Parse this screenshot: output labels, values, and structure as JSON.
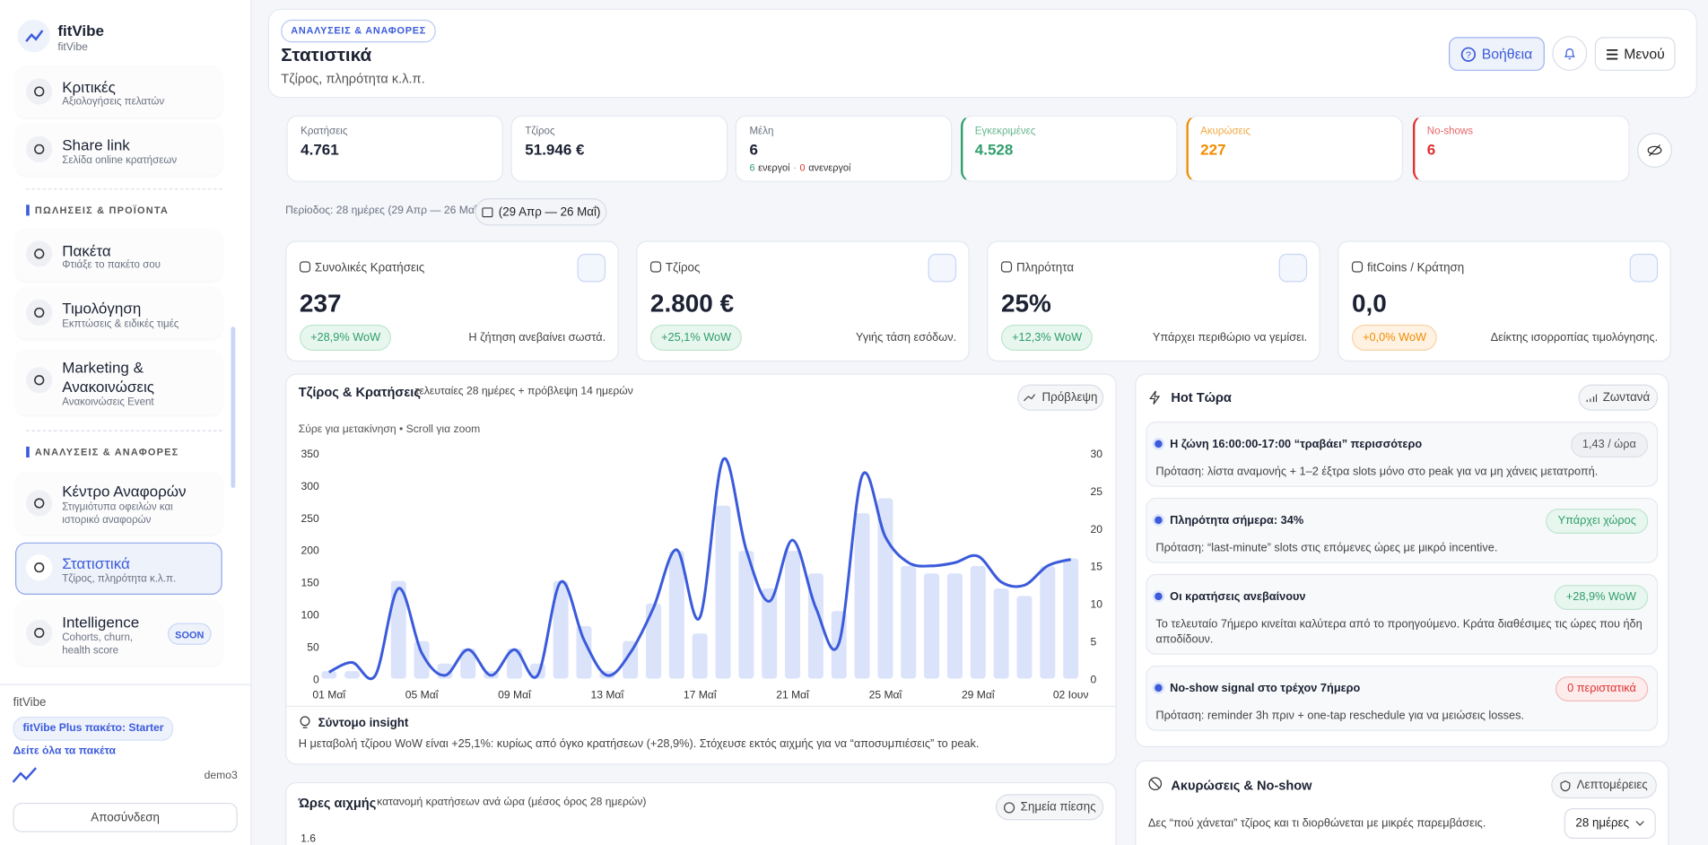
{
  "sidebar": {
    "brand": "fitVibe",
    "brand_sub": "fitVibe",
    "items": [
      {
        "title": "Κριτικές",
        "sub": "Αξιολογήσεις πελατών"
      },
      {
        "title": "Share link",
        "sub": "Σελίδα online κρατήσεων"
      },
      {
        "title": "Πακέτα",
        "sub": "Φτιάξε το πακέτο σου"
      },
      {
        "title": "Τιμολόγηση",
        "sub": "Εκπτώσεις & ειδικές τιμές"
      },
      {
        "title": "Marketing & Ανακοινώσεις",
        "sub": "Ανακοινώσεις Event"
      },
      {
        "title": "Κέντρο Αναφορών",
        "sub": "Στιγμιότυπα οφειλών και ιστορικό αναφορών"
      },
      {
        "title": "Στατιστικά",
        "sub": "Τζίρος, πληρότητα κ.λ.π.",
        "active": true
      },
      {
        "title": "Intelligence",
        "sub": "Cohorts, churn, health score",
        "badge": "SOON"
      }
    ],
    "sections": [
      "ΠΩΛΗΣΕΙΣ & ΠΡΟΪΟΝΤΑ",
      "ΑΝΑΛΥΣΕΙΣ & ΑΝΑΦΟΡΕΣ"
    ],
    "footer": {
      "brand": "fitVibe",
      "plan": "fitVibe Plus πακέτο: Starter",
      "link": "Δείτε όλα τα πακέτα",
      "user": "demo3",
      "logout": "Αποσύνδεση"
    }
  },
  "header": {
    "badge": "ΑΝΑΛΥΣΕΙΣ & ΑΝΑΦΟΡΕΣ",
    "title": "Στατιστικά",
    "subtitle": "Τζίρος, πληρότητα κ.λ.π.",
    "help": "Βοήθεια",
    "menu": "Μενού"
  },
  "kpis": [
    {
      "label": "Κρατήσεις",
      "value": "4.761"
    },
    {
      "label": "Τζίρος",
      "value": "51.946 €"
    },
    {
      "label": "Μέλη",
      "value": "6",
      "active": "6",
      "active_label": "ενεργοί",
      "sep": "·",
      "inactive": "0",
      "inactive_label": "ανενεργοί"
    },
    {
      "label": "Εγκεκριμένες",
      "value": "4.528",
      "tone": "green"
    },
    {
      "label": "Ακυρώσεις",
      "value": "227",
      "tone": "orange"
    },
    {
      "label": "No-shows",
      "value": "6",
      "tone": "red"
    }
  ],
  "period": {
    "text": "Περίοδος: 28 ημέρες (29 Απρ — 26 Μαΐ)",
    "button": "(29 Απρ — 26 Μαΐ)"
  },
  "stats": [
    {
      "label": "Συνολικές Κρατήσεις",
      "value": "237",
      "badge": "+28,9% WoW",
      "note": "Η ζήτηση ανεβαίνει σωστά.",
      "tone": "green"
    },
    {
      "label": "Τζίρος",
      "value": "2.800 €",
      "badge": "+25,1% WoW",
      "note": "Υγιής τάση εσόδων.",
      "tone": "green"
    },
    {
      "label": "Πληρότητα",
      "value": "25%",
      "badge": "+12,3% WoW",
      "note": "Υπάρχει περιθώριο να γεμίσει.",
      "tone": "green"
    },
    {
      "label": "fitCoins / Κράτηση",
      "value": "0,0",
      "badge": "+0,0% WoW",
      "note": "Δείκτης ισορροπίας τιμολόγησης.",
      "tone": "orange"
    }
  ],
  "chart_card": {
    "title": "Τζίρος & Κρατήσεις",
    "subtitle": "τελευταίες 28 ημέρες + πρόβλεψη 14 ημερών",
    "button": "Πρόβλεψη",
    "hint": "Σύρε για μετακίνηση • Scroll για zoom",
    "insight_title": "Σύντομο insight",
    "insight_text": "Η μεταβολή τζίρου WoW είναι +25,1%: κυρίως από όγκο κρατήσεων (+28,9%). Στόχευσε εκτός αιχμής για να “αποσυμπιέσεις” το peak."
  },
  "chart_data": {
    "type": "bar",
    "categories": [
      "01 Μαΐ",
      null,
      null,
      null,
      "05 Μαΐ",
      null,
      null,
      null,
      "09 Μαΐ",
      null,
      null,
      null,
      "13 Μαΐ",
      null,
      null,
      null,
      "17 Μαΐ",
      null,
      null,
      null,
      "21 Μαΐ",
      null,
      null,
      null,
      "25 Μαΐ",
      null,
      null,
      null,
      "29 Μαΐ",
      null,
      null,
      null,
      "02 Ιουν"
    ],
    "series": [
      {
        "type": "bar",
        "axis": "y2",
        "color": "#dbe3fb",
        "values": [
          1,
          1,
          0,
          13,
          5,
          2,
          4,
          1,
          4,
          2,
          13,
          7,
          1,
          5,
          10,
          17,
          6,
          23,
          17,
          12,
          17,
          14,
          9,
          22,
          24,
          15,
          14,
          14,
          15,
          12,
          11,
          15,
          16
        ]
      },
      {
        "type": "line",
        "color": "#3b5bdb",
        "values": [
          10,
          25,
          5,
          140,
          40,
          5,
          45,
          5,
          45,
          5,
          150,
          60,
          5,
          40,
          110,
          200,
          95,
          340,
          200,
          120,
          215,
          110,
          55,
          315,
          220,
          180,
          175,
          180,
          190,
          150,
          145,
          175,
          185
        ]
      }
    ],
    "ylim": [
      0,
      350
    ],
    "yticks": [
      0,
      50,
      100,
      150,
      200,
      250,
      300,
      350
    ],
    "y2lim": [
      0,
      30
    ],
    "y2ticks": [
      0,
      5,
      10,
      15,
      20,
      25,
      30
    ]
  },
  "hot": {
    "title": "Hot Τώρα",
    "button": "Ζωντανά",
    "items": [
      {
        "title": "Η ζώνη 16:00:00-17:00 “τραβάει” περισσότερο",
        "pill": "1,43 / ώρα",
        "text": "Πρόταση: λίστα αναμονής + 1–2 έξτρα slots μόνο στο peak για να μη χάνεις μετατροπή.",
        "tone": "grey"
      },
      {
        "title": "Πληρότητα σήμερα: 34%",
        "pill": "Υπάρχει χώρος",
        "text": "Πρόταση: “last-minute” slots στις επόμενες ώρες με μικρό incentive.",
        "tone": "green"
      },
      {
        "title": "Οι κρατήσεις ανεβαίνουν",
        "pill": "+28,9% WoW",
        "text": "Το τελευταίο 7ήμερο κινείται καλύτερα από το προηγούμενο. Κράτα διαθέσιμες τις ώρες που ήδη αποδίδουν.",
        "tone": "green"
      },
      {
        "title": "No-show signal στο τρέχον 7ήμερο",
        "pill": "0 περιστατικά",
        "text": "Πρόταση: reminder 3h πριν + one-tap reschedule για να μειώσεις losses.",
        "tone": "red"
      }
    ]
  },
  "cancel": {
    "title": "Ακυρώσεις & No-show",
    "button": "Λεπτομέρειες",
    "text": "Δες “πού χάνεται” τζίρος και τι διορθώνεται με μικρές παρεμβάσεις.",
    "select": "28 ημέρες"
  },
  "peak": {
    "title": "Ώρες αιχμής",
    "subtitle": "κατανομή κρατήσεων ανά ώρα (μέσος όρος 28 ημερών)",
    "button": "Σημεία πίεσης",
    "ytick": "1.6"
  }
}
